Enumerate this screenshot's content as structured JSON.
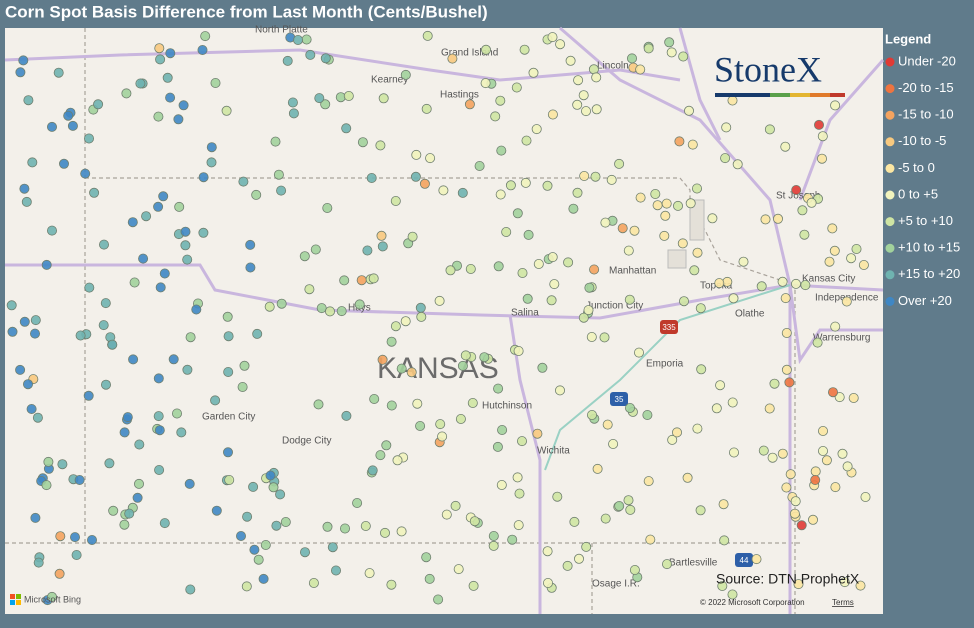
{
  "header": {
    "title": "Corn Spot Basis Difference from Last Month (Cents/Bushel)"
  },
  "legend": {
    "title": "Legend",
    "items": [
      {
        "label": "Under -20",
        "color": "#e03a35"
      },
      {
        "label": "-20 to -15",
        "color": "#ee7440"
      },
      {
        "label": "-15 to -10",
        "color": "#f4a35f"
      },
      {
        "label": "-10 to -5",
        "color": "#f8c97f"
      },
      {
        "label": "-5 to 0",
        "color": "#fbe6a2"
      },
      {
        "label": "0 to +5",
        "color": "#f1f3bd"
      },
      {
        "label": "+5 to +10",
        "color": "#cfe5a3"
      },
      {
        "label": "+10 to +15",
        "color": "#a2d29c"
      },
      {
        "label": "+15 to +20",
        "color": "#6fb3b0"
      },
      {
        "label": "Over +20",
        "color": "#3f87c4"
      }
    ]
  },
  "map": {
    "places": [
      "North Platte",
      "Grand Island",
      "Lincoln",
      "Kearney",
      "Hastings",
      "St Joseph",
      "Kansas City",
      "Independence",
      "Topeka",
      "Manhattan",
      "Junction City",
      "Olathe",
      "Hays",
      "Salina",
      "Emporia",
      "Warrensburg",
      "Garden City",
      "Hutchinson",
      "Dodge City",
      "Wichita",
      "Bartlesville",
      "Osage I.R."
    ],
    "region": "KANSAS",
    "shields": [
      "335",
      "35",
      "44"
    ],
    "bing": "Microsoft Bing",
    "copyright": "© 2022 Microsoft Corporation",
    "terms": "Terms"
  },
  "logo": "StoneX",
  "source": "Source: DTN ProphetX"
}
